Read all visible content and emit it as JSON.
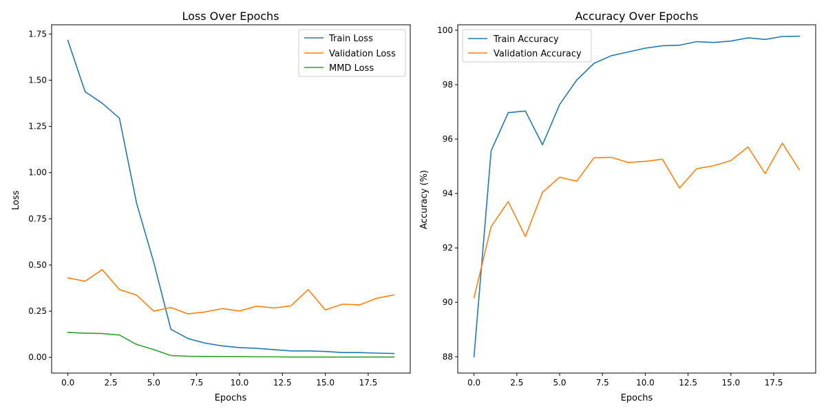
{
  "chart_data": [
    {
      "type": "line",
      "title": "Loss Over Epochs",
      "xlabel": "Epochs",
      "ylabel": "Loss",
      "xlim": [
        -0.95,
        19.95
      ],
      "ylim": [
        -0.085,
        1.8
      ],
      "xticks": [
        0.0,
        2.5,
        5.0,
        7.5,
        10.0,
        12.5,
        15.0,
        17.5
      ],
      "xtick_labels": [
        "0.0",
        "2.5",
        "5.0",
        "7.5",
        "10.0",
        "12.5",
        "15.0",
        "17.5"
      ],
      "yticks": [
        0.0,
        0.25,
        0.5,
        0.75,
        1.0,
        1.25,
        1.5,
        1.75
      ],
      "ytick_labels": [
        "0.00",
        "0.25",
        "0.50",
        "0.75",
        "1.00",
        "1.25",
        "1.50",
        "1.75"
      ],
      "legend_position": "top-right",
      "grid": false,
      "x": [
        0,
        1,
        2,
        3,
        4,
        5,
        6,
        7,
        8,
        9,
        10,
        11,
        12,
        13,
        14,
        15,
        16,
        17,
        18,
        19
      ],
      "series": [
        {
          "name": "Train Loss",
          "color": "#1f77b4",
          "values": [
            1.715,
            1.438,
            1.375,
            1.295,
            0.835,
            0.515,
            0.152,
            0.102,
            0.077,
            0.062,
            0.053,
            0.049,
            0.042,
            0.035,
            0.035,
            0.032,
            0.026,
            0.026,
            0.023,
            0.021
          ]
        },
        {
          "name": "Validation Loss",
          "color": "#ff7f0e",
          "values": [
            0.43,
            0.412,
            0.475,
            0.367,
            0.337,
            0.25,
            0.27,
            0.235,
            0.246,
            0.264,
            0.251,
            0.277,
            0.267,
            0.279,
            0.367,
            0.257,
            0.288,
            0.284,
            0.32,
            0.338
          ]
        },
        {
          "name": "MMD Loss",
          "color": "#2ca02c",
          "values": [
            0.135,
            0.131,
            0.129,
            0.121,
            0.07,
            0.042,
            0.01,
            0.006,
            0.005,
            0.004,
            0.004,
            0.003,
            0.003,
            0.002,
            0.002,
            0.002,
            0.002,
            0.002,
            0.002,
            0.002
          ]
        }
      ]
    },
    {
      "type": "line",
      "title": "Accuracy Over Epochs",
      "xlabel": "Epochs",
      "ylabel": "Accuracy (%)",
      "xlim": [
        -0.95,
        19.95
      ],
      "ylim": [
        87.4,
        100.2
      ],
      "xticks": [
        0.0,
        2.5,
        5.0,
        7.5,
        10.0,
        12.5,
        15.0,
        17.5
      ],
      "xtick_labels": [
        "0.0",
        "2.5",
        "5.0",
        "7.5",
        "10.0",
        "12.5",
        "15.0",
        "17.5"
      ],
      "yticks": [
        88,
        90,
        92,
        94,
        96,
        98,
        100
      ],
      "ytick_labels": [
        "88",
        "90",
        "92",
        "94",
        "96",
        "98",
        "100"
      ],
      "legend_position": "top-left",
      "grid": false,
      "x": [
        0,
        1,
        2,
        3,
        4,
        5,
        6,
        7,
        8,
        9,
        10,
        11,
        12,
        13,
        14,
        15,
        16,
        17,
        18,
        19
      ],
      "series": [
        {
          "name": "Train Accuracy",
          "color": "#1f77b4",
          "values": [
            88.0,
            95.57,
            96.97,
            97.03,
            95.79,
            97.27,
            98.17,
            98.78,
            99.06,
            99.2,
            99.34,
            99.43,
            99.45,
            99.58,
            99.55,
            99.6,
            99.72,
            99.66,
            99.77,
            99.78
          ]
        },
        {
          "name": "Validation Accuracy",
          "color": "#ff7f0e",
          "values": [
            90.17,
            92.78,
            93.7,
            92.42,
            94.04,
            94.6,
            94.45,
            95.31,
            95.33,
            95.14,
            95.18,
            95.26,
            94.2,
            94.91,
            95.02,
            95.21,
            95.71,
            94.73,
            95.85,
            94.87
          ]
        }
      ]
    }
  ]
}
